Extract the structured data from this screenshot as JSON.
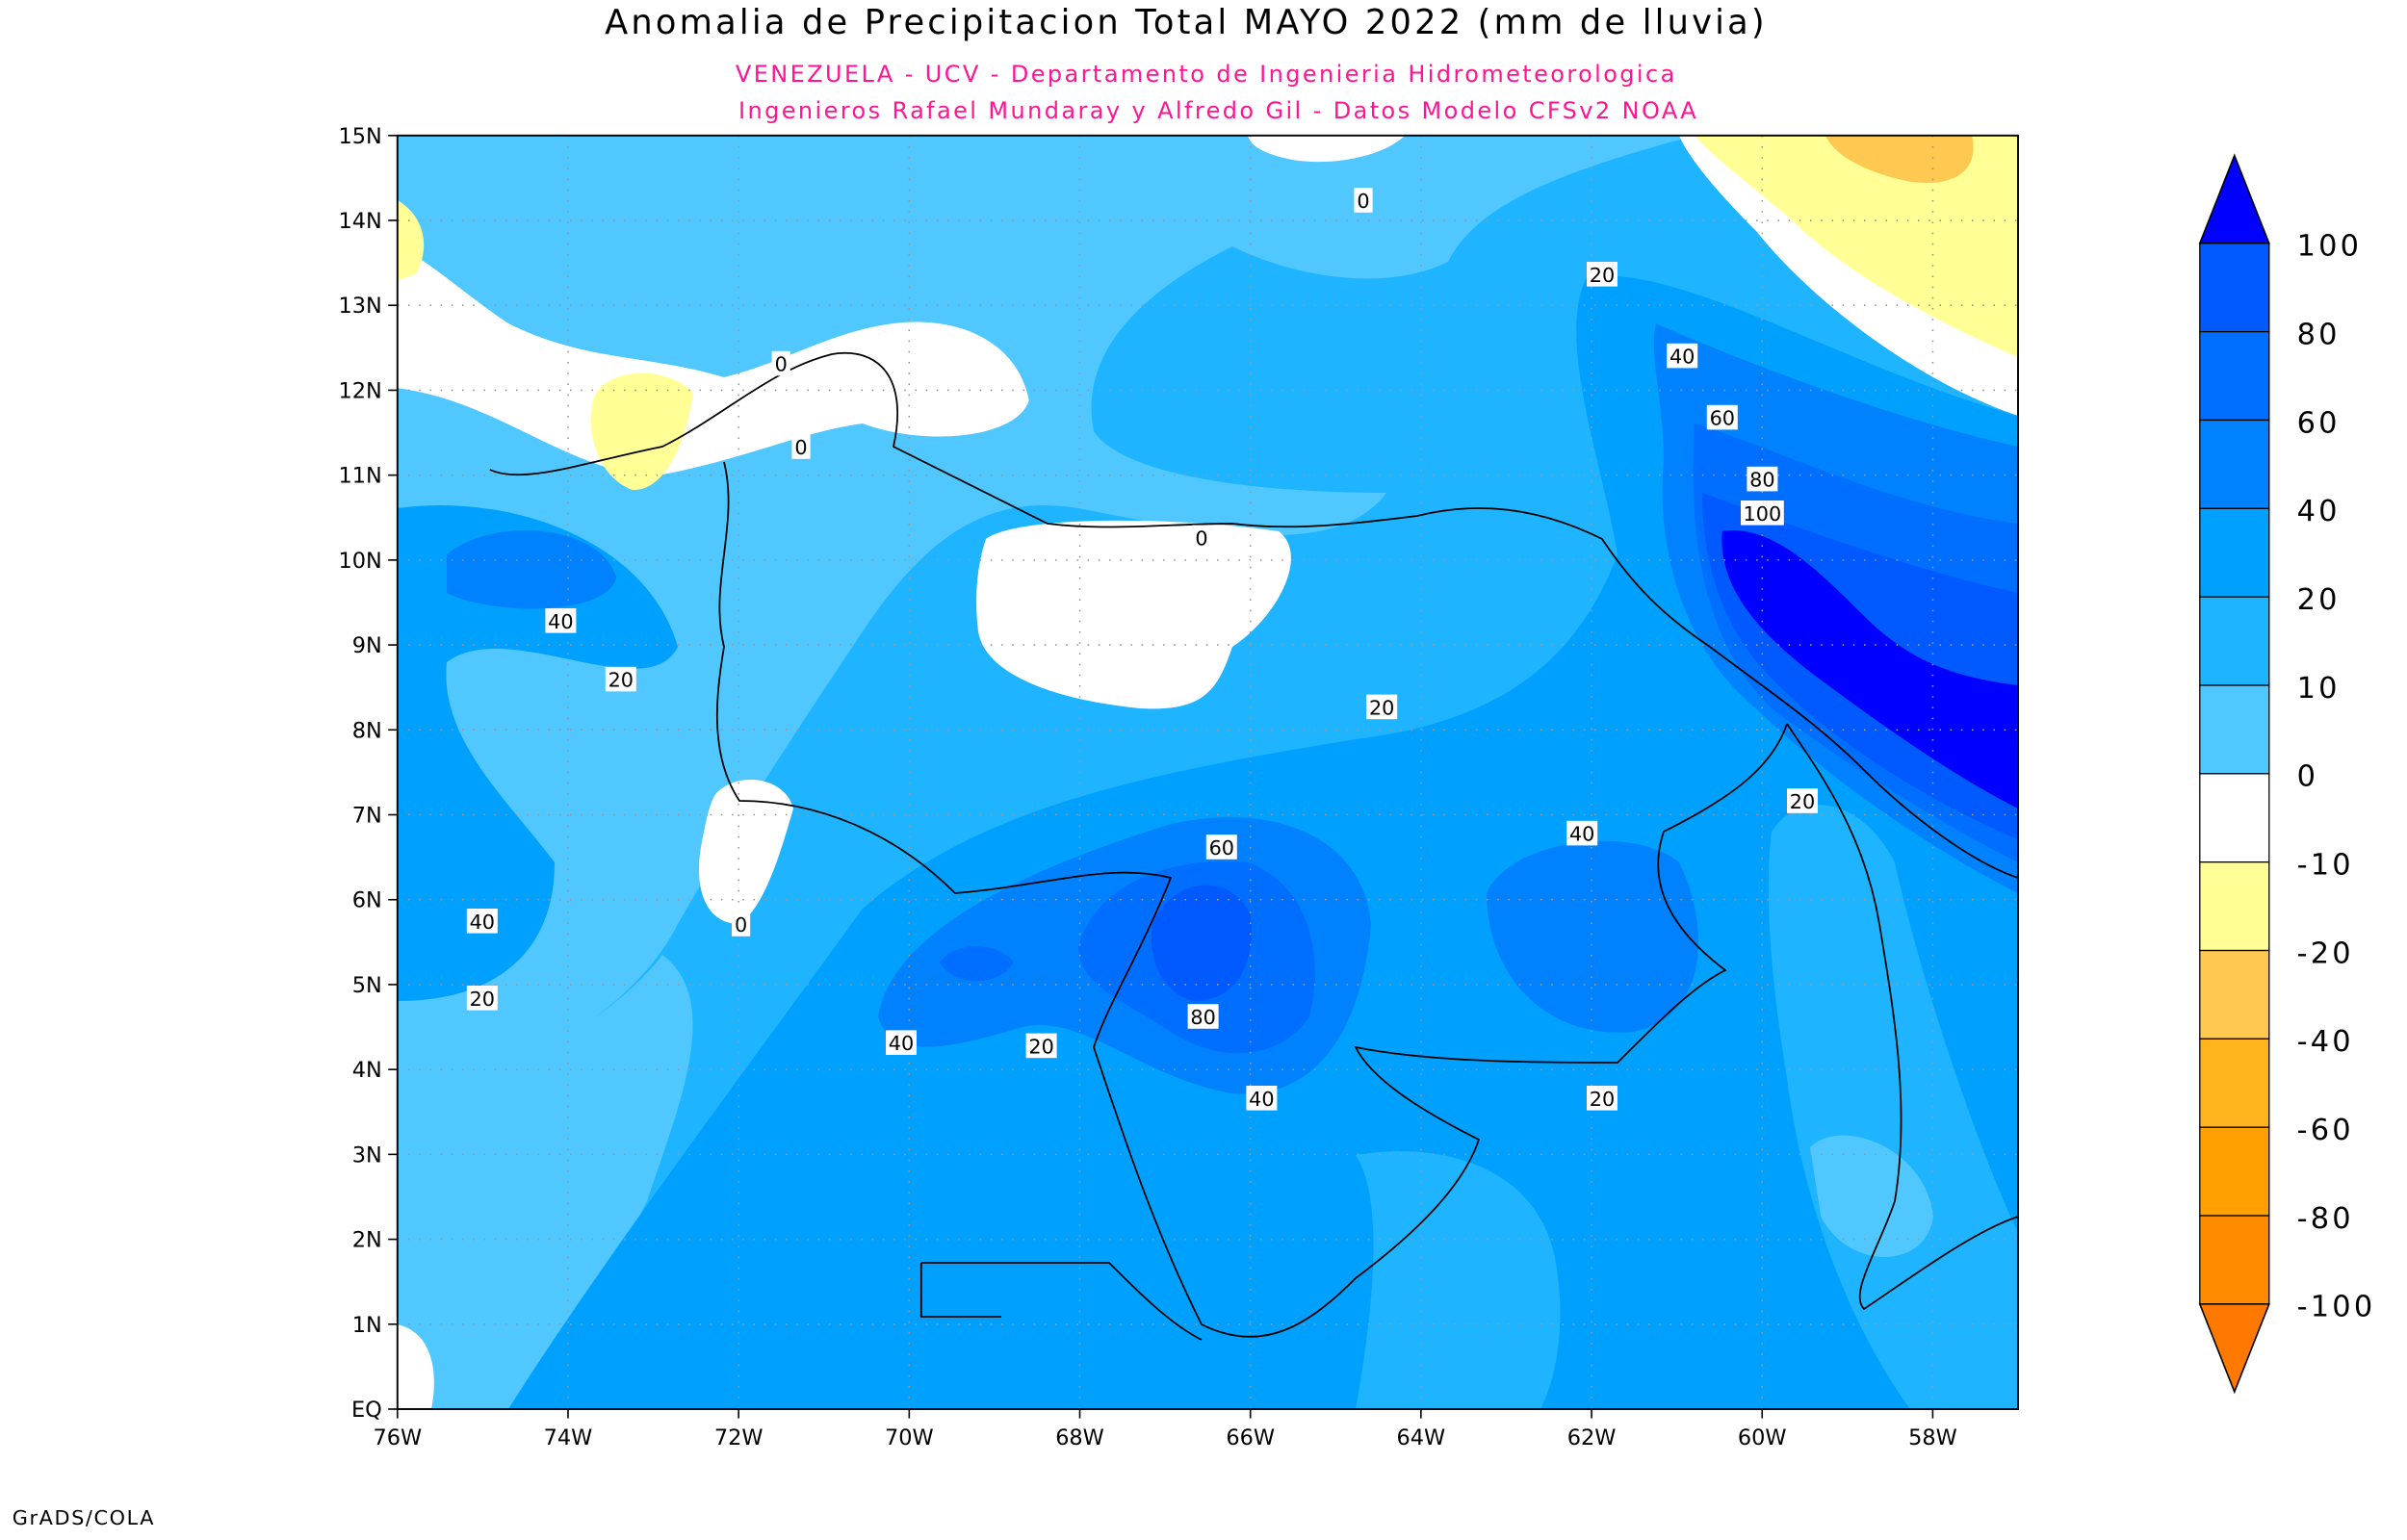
{
  "title": "Anomalia de Precipitacion Total MAYO 2022 (mm de lluvia)",
  "subtitle_1": "VENEZUELA - UCV - Departamento de Ingenieria Hidrometeorologica",
  "subtitle_2": "Ingenieros Rafael Mundaray y Alfredo Gil - Datos Modelo CFSv2 NOAA",
  "credit": "GrADS/COLA",
  "axes": {
    "lon_labels": [
      "76W",
      "74W",
      "72W",
      "70W",
      "68W",
      "66W",
      "64W",
      "62W",
      "60W",
      "58W"
    ],
    "lat_labels": [
      "EQ",
      "1N",
      "2N",
      "3N",
      "4N",
      "5N",
      "6N",
      "7N",
      "8N",
      "9N",
      "10N",
      "11N",
      "12N",
      "13N",
      "14N",
      "15N"
    ]
  },
  "contour_labels": [
    "0",
    "20",
    "40",
    "60",
    "80",
    "100",
    "0",
    "0",
    "0",
    "40",
    "20",
    "20",
    "20",
    "40",
    "60",
    "0",
    "40",
    "20",
    "80",
    "40",
    "20",
    "40",
    "20"
  ],
  "colorbar": {
    "labels": [
      "100",
      "80",
      "60",
      "40",
      "20",
      "10",
      "0",
      "-10",
      "-20",
      "-40",
      "-60",
      "-80",
      "-100"
    ],
    "colors": [
      "#0000ff",
      "#005aff",
      "#006eff",
      "#0082ff",
      "#00a0ff",
      "#1eb4ff",
      "#50c8ff",
      "#ffffff",
      "#ffff96",
      "#ffc850",
      "#ffb41e",
      "#ffa000",
      "#ff8c00",
      "#ff7800"
    ]
  }
}
